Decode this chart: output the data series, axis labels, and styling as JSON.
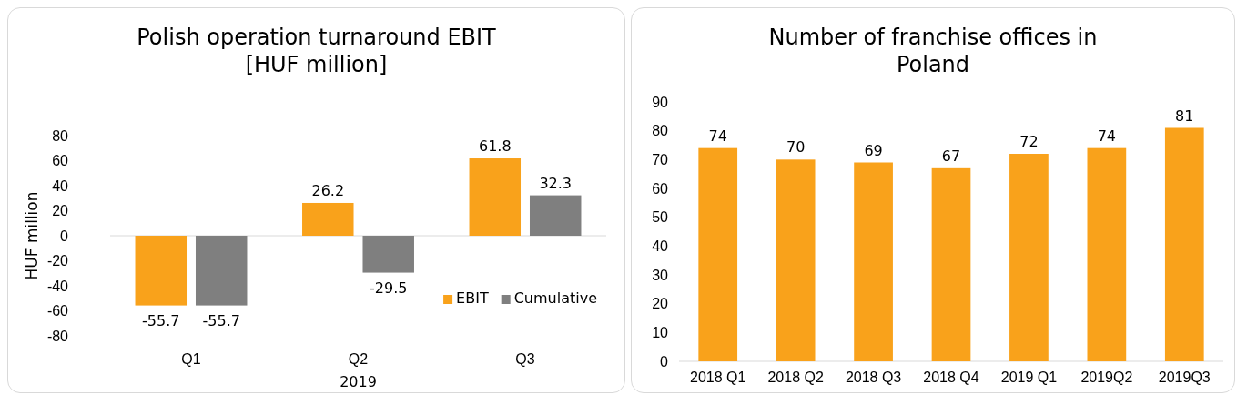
{
  "chart_data": [
    {
      "type": "bar",
      "title": "Polish operation turnaround EBIT [HUF million]",
      "ylabel": "HUF million",
      "xlabel": "2019",
      "categories": [
        "Q1",
        "Q2",
        "Q3"
      ],
      "series": [
        {
          "name": "EBIT",
          "color": "#f9a21b",
          "values": [
            -55.7,
            26.2,
            61.8
          ]
        },
        {
          "name": "Cumulative",
          "color": "#7f7f7f",
          "values": [
            -55.7,
            -29.5,
            32.3
          ]
        }
      ],
      "ylim": [
        -80,
        80
      ],
      "yticks": [
        -80,
        -60,
        -40,
        -20,
        0,
        20,
        40,
        60,
        80
      ],
      "data_labels": true,
      "legend": "bottom right"
    },
    {
      "type": "bar",
      "title": "Number of franchise offices in Poland",
      "categories": [
        "2018 Q1",
        "2018 Q2",
        "2018 Q3",
        "2018 Q4",
        "2019 Q1",
        "2019Q2",
        "2019Q3"
      ],
      "values": [
        74,
        70,
        69,
        67,
        72,
        74,
        81
      ],
      "color": "#f9a21b",
      "ylim": [
        0,
        90
      ],
      "yticks": [
        0,
        10,
        20,
        30,
        40,
        50,
        60,
        70,
        80,
        90
      ],
      "data_labels": true
    }
  ]
}
